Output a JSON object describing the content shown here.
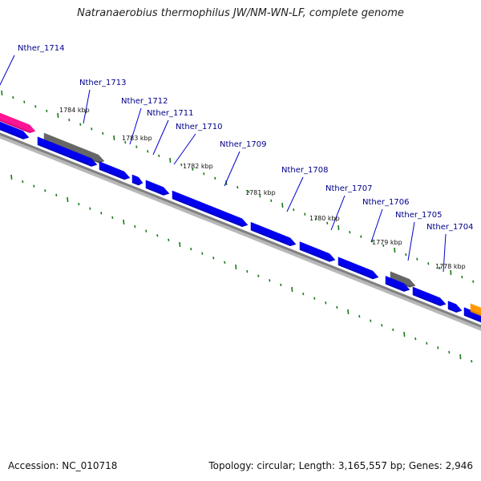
{
  "title": "Natranaerobius thermophilus JW/NM-WN-LF, complete genome",
  "footer": {
    "accession": "Accession: NC_010718",
    "summary": "Topology: circular; Length: 3,165,557 bp; Genes: 2,946"
  },
  "colors": {
    "background": "#ffffff",
    "backbone": "#808080",
    "backbone_shadow": "#b8b8b8",
    "tick": "#1a7a1a",
    "label_text": "#00008b",
    "leader_line": "#0000cd",
    "kbp_text": "#111111",
    "cds": "#0000ee",
    "rna_pink": "#ff1493",
    "grey_feature": "#666666",
    "orange_feature": "#ff9900"
  },
  "genes": [
    {
      "name": "Nther_1714"
    },
    {
      "name": "Nther_1713"
    },
    {
      "name": "Nther_1712"
    },
    {
      "name": "Nther_1711"
    },
    {
      "name": "Nther_1710"
    },
    {
      "name": "Nther_1709"
    },
    {
      "name": "Nther_1708"
    },
    {
      "name": "Nther_1707"
    },
    {
      "name": "Nther_1706"
    },
    {
      "name": "Nther_1705"
    },
    {
      "name": "Nther_1704"
    }
  ],
  "kbp_marks": [
    "1784 kbp",
    "1783 kbp",
    "1782 kbp",
    "1781 kbp",
    "1780 kbp",
    "1779 kbp",
    "1778 kbp"
  ]
}
